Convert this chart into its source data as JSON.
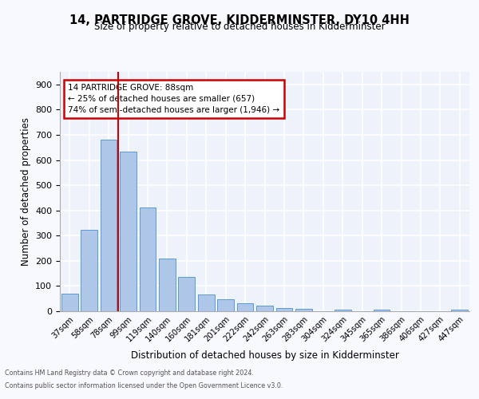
{
  "title": "14, PARTRIDGE GROVE, KIDDERMINSTER, DY10 4HH",
  "subtitle": "Size of property relative to detached houses in Kidderminster",
  "xlabel": "Distribution of detached houses by size in Kidderminster",
  "ylabel": "Number of detached properties",
  "categories": [
    "37sqm",
    "58sqm",
    "78sqm",
    "99sqm",
    "119sqm",
    "140sqm",
    "160sqm",
    "181sqm",
    "201sqm",
    "222sqm",
    "242sqm",
    "263sqm",
    "283sqm",
    "304sqm",
    "324sqm",
    "345sqm",
    "365sqm",
    "386sqm",
    "406sqm",
    "427sqm",
    "447sqm"
  ],
  "values": [
    70,
    322,
    682,
    632,
    413,
    209,
    137,
    68,
    48,
    33,
    22,
    13,
    8,
    0,
    7,
    0,
    7,
    0,
    0,
    0,
    7
  ],
  "bar_color": "#aec6e8",
  "bar_edge_color": "#5b9bd5",
  "vline_x": 2.5,
  "vline_color": "#cc0000",
  "annotation_title": "14 PARTRIDGE GROVE: 88sqm",
  "annotation_line1": "← 25% of detached houses are smaller (657)",
  "annotation_line2": "74% of semi-detached houses are larger (1,946) →",
  "annotation_box_color": "#cc0000",
  "plot_bg_color": "#eef2fb",
  "fig_bg_color": "#f8f8ff",
  "grid_color": "#ffffff",
  "ylim": [
    0,
    950
  ],
  "yticks": [
    0,
    100,
    200,
    300,
    400,
    500,
    600,
    700,
    800,
    900
  ],
  "footer_line1": "Contains HM Land Registry data © Crown copyright and database right 2024.",
  "footer_line2": "Contains public sector information licensed under the Open Government Licence v3.0."
}
